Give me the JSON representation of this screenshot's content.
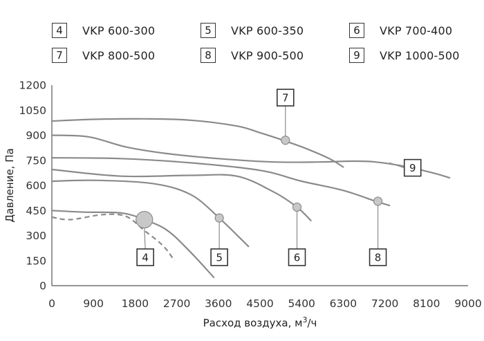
{
  "legend": [
    {
      "num": "4",
      "label": "VKP 600-300"
    },
    {
      "num": "5",
      "label": "VKP 600-350"
    },
    {
      "num": "6",
      "label": "VKP 700-400"
    },
    {
      "num": "7",
      "label": "VKP 800-500"
    },
    {
      "num": "8",
      "label": "VKP 900-500"
    },
    {
      "num": "9",
      "label": "VKP 1000-500"
    }
  ],
  "chart_data": {
    "type": "line",
    "xlabel": "Расход воздуха, м",
    "xlabel_sup": "3",
    "xlabel_tail": "/ч",
    "ylabel": "Давление, Па",
    "xlim": [
      0,
      9000
    ],
    "ylim": [
      0,
      1200
    ],
    "xticks": [
      "0",
      "900",
      "1800",
      "2700",
      "3600",
      "4500",
      "5400",
      "6300",
      "7200",
      "8100",
      "9000"
    ],
    "yticks": [
      "0",
      "150",
      "300",
      "450",
      "600",
      "750",
      "900",
      "1050",
      "1200"
    ],
    "grid": false,
    "colors": {
      "curve": "#8a8a8a",
      "marker": "#c8c8c8",
      "box": "#333333"
    },
    "series": [
      {
        "id": "4",
        "points": [
          [
            0,
            450
          ],
          [
            700,
            440
          ],
          [
            1500,
            435
          ],
          [
            2000,
            395
          ],
          [
            2500,
            330
          ],
          [
            3000,
            200
          ],
          [
            3500,
            50
          ]
        ],
        "dashed": [
          [
            0,
            410
          ],
          [
            400,
            395
          ],
          [
            1100,
            425
          ],
          [
            1600,
            415
          ],
          [
            2000,
            330
          ],
          [
            2400,
            240
          ],
          [
            2650,
            150
          ]
        ],
        "marker": [
          2000,
          395
        ],
        "marker_size": "large",
        "tag_pos": [
          2020,
          170
        ]
      },
      {
        "id": "5",
        "points": [
          [
            0,
            625
          ],
          [
            1000,
            630
          ],
          [
            2200,
            610
          ],
          [
            3000,
            545
          ],
          [
            3600,
            410
          ],
          [
            4250,
            235
          ]
        ],
        "marker": [
          3620,
          405
        ],
        "tag_pos": [
          3620,
          170
        ]
      },
      {
        "id": "6",
        "points": [
          [
            0,
            695
          ],
          [
            1500,
            655
          ],
          [
            3000,
            660
          ],
          [
            4000,
            655
          ],
          [
            4800,
            560
          ],
          [
            5300,
            470
          ],
          [
            5600,
            390
          ]
        ],
        "marker": [
          5300,
          470
        ],
        "tag_pos": [
          5300,
          170
        ]
      },
      {
        "id": "7",
        "points": [
          [
            0,
            985
          ],
          [
            900,
            995
          ],
          [
            2000,
            998
          ],
          [
            3000,
            990
          ],
          [
            4000,
            955
          ],
          [
            4500,
            915
          ],
          [
            5000,
            870
          ],
          [
            5500,
            820
          ],
          [
            6000,
            760
          ],
          [
            6300,
            710
          ]
        ],
        "marker": [
          5050,
          870
        ],
        "tag_pos": [
          5050,
          1125
        ]
      },
      {
        "id": "8",
        "points": [
          [
            0,
            765
          ],
          [
            1500,
            760
          ],
          [
            3000,
            735
          ],
          [
            4500,
            690
          ],
          [
            5400,
            625
          ],
          [
            6300,
            570
          ],
          [
            7000,
            505
          ],
          [
            7300,
            480
          ]
        ],
        "marker": [
          7050,
          505
        ],
        "tag_pos": [
          7050,
          170
        ]
      },
      {
        "id": "9",
        "points": [
          [
            0,
            900
          ],
          [
            800,
            890
          ],
          [
            1600,
            830
          ],
          [
            2500,
            790
          ],
          [
            3600,
            760
          ],
          [
            4800,
            740
          ],
          [
            5800,
            740
          ],
          [
            6500,
            745
          ],
          [
            7000,
            740
          ],
          [
            7700,
            710
          ],
          [
            8300,
            670
          ],
          [
            8600,
            645
          ]
        ],
        "marker": null,
        "tag_pos": [
          7800,
          705
        ],
        "tag_line": [
          7300,
          735
        ]
      }
    ]
  }
}
